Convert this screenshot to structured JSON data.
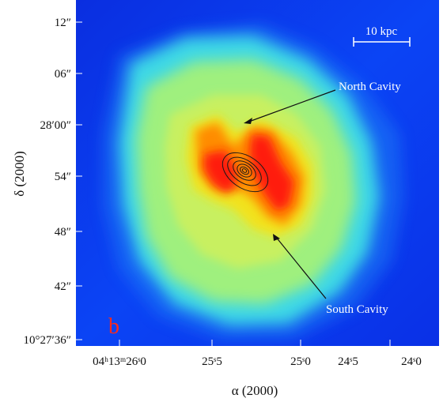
{
  "figure": {
    "panel_label": "b",
    "panel_label_color": "#ff2a1a",
    "scale_bar_label": "10 kpc",
    "annotations": {
      "north": "North Cavity",
      "south": "South Cavity"
    },
    "x_axis": {
      "title": "α (2000)",
      "ticks": [
        "04ʰ13ᵐ26ˢ0",
        "25ˢ5",
        "25ˢ0",
        "24ˢ5",
        "24ˢ0"
      ]
    },
    "y_axis": {
      "title": "δ (2000)",
      "ticks": [
        "12″",
        "06″",
        "28′00″",
        "54″",
        "48″",
        "42″",
        "10°27′36″"
      ]
    },
    "colors": {
      "background_blue": "#0b3cf0",
      "cyan": "#33e0e0",
      "green": "#a8f070",
      "yellow": "#f0e000",
      "orange": "#ff8a00",
      "red": "#ff1f10"
    }
  }
}
